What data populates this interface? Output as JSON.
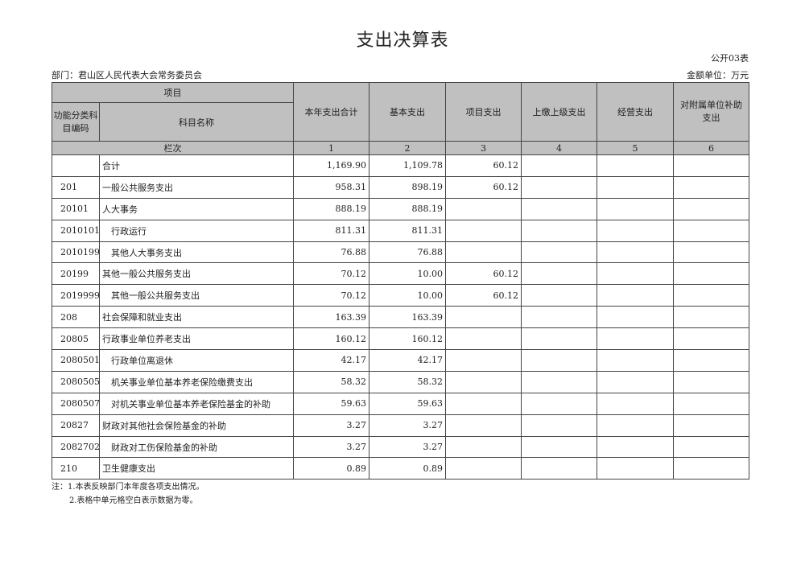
{
  "title": "支出决算表",
  "form_no": "公开03表",
  "department": "部门：君山区人民代表大会常务委员会",
  "unit": "金额单位：万元",
  "header": {
    "project": "项目",
    "code": "功能分类科目编码",
    "name": "科目名称",
    "columns": [
      "本年支出合计",
      "基本支出",
      "项目支出",
      "上缴上级支出",
      "经营支出",
      "对附属单位补助支出"
    ],
    "row_index_label": "栏次",
    "row_indices": [
      "1",
      "2",
      "3",
      "4",
      "5",
      "6"
    ]
  },
  "rows": [
    {
      "code": "",
      "name": "合计",
      "values": [
        "1,169.90",
        "1,109.78",
        "60.12",
        "",
        "",
        ""
      ]
    },
    {
      "code": "201",
      "name": "一般公共服务支出",
      "values": [
        "958.31",
        "898.19",
        "60.12",
        "",
        "",
        ""
      ]
    },
    {
      "code": "20101",
      "name": "人大事务",
      "values": [
        "888.19",
        "888.19",
        "",
        "",
        "",
        ""
      ]
    },
    {
      "code": "2010101",
      "name": "行政运行",
      "values": [
        "811.31",
        "811.31",
        "",
        "",
        "",
        ""
      ]
    },
    {
      "code": "2010199",
      "name": "其他人大事务支出",
      "values": [
        "76.88",
        "76.88",
        "",
        "",
        "",
        ""
      ]
    },
    {
      "code": "20199",
      "name": "其他一般公共服务支出",
      "values": [
        "70.12",
        "10.00",
        "60.12",
        "",
        "",
        ""
      ]
    },
    {
      "code": "2019999",
      "name": "其他一般公共服务支出",
      "values": [
        "70.12",
        "10.00",
        "60.12",
        "",
        "",
        ""
      ]
    },
    {
      "code": "208",
      "name": "社会保障和就业支出",
      "values": [
        "163.39",
        "163.39",
        "",
        "",
        "",
        ""
      ]
    },
    {
      "code": "20805",
      "name": "行政事业单位养老支出",
      "values": [
        "160.12",
        "160.12",
        "",
        "",
        "",
        ""
      ]
    },
    {
      "code": "2080501",
      "name": "行政单位离退休",
      "values": [
        "42.17",
        "42.17",
        "",
        "",
        "",
        ""
      ]
    },
    {
      "code": "2080505",
      "name": "机关事业单位基本养老保险缴费支出",
      "values": [
        "58.32",
        "58.32",
        "",
        "",
        "",
        ""
      ]
    },
    {
      "code": "2080507",
      "name": "对机关事业单位基本养老保险基金的补助",
      "values": [
        "59.63",
        "59.63",
        "",
        "",
        "",
        ""
      ]
    },
    {
      "code": "20827",
      "name": "财政对其他社会保险基金的补助",
      "values": [
        "3.27",
        "3.27",
        "",
        "",
        "",
        ""
      ]
    },
    {
      "code": "2082702",
      "name": "财政对工伤保险基金的补助",
      "values": [
        "3.27",
        "3.27",
        "",
        "",
        "",
        ""
      ]
    },
    {
      "code": "210",
      "name": "卫生健康支出",
      "values": [
        "0.89",
        "0.89",
        "",
        "",
        "",
        ""
      ]
    }
  ],
  "notes": [
    "注：1.本表反映部门本年度各项支出情况。",
    "2.表格中单元格空白表示数据为零。"
  ]
}
